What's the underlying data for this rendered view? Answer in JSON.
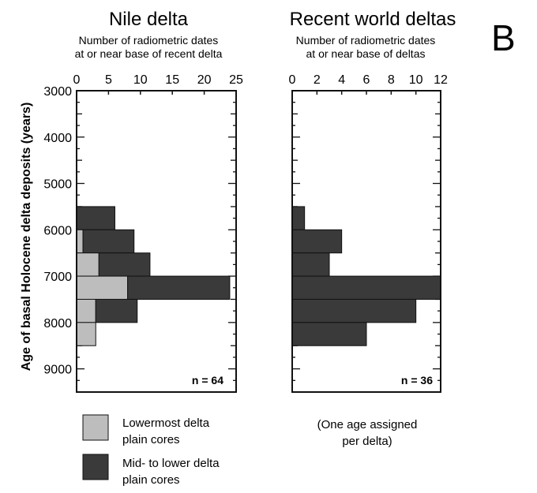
{
  "panel_label": "B",
  "y_axis_label": "Age of basal Holocene delta deposits (years)",
  "colors": {
    "lowermost": "#bdbdbd",
    "midlower": "#3a3a3a",
    "frame": "#111111"
  },
  "legend": {
    "items": [
      {
        "line1": "Lowermost delta",
        "line2": "plain cores",
        "color": "#bdbdbd"
      },
      {
        "line1": "Mid- to lower delta",
        "line2": "plain cores",
        "color": "#3a3a3a"
      }
    ]
  },
  "chart_data": [
    {
      "type": "bar",
      "orientation": "horizontal",
      "stacked": true,
      "title": "Nile delta",
      "xlabel_line1": "Number of radiometric dates",
      "xlabel_line2": "at or near base of recent delta",
      "xlim": [
        0,
        25
      ],
      "xticks": [
        0,
        5,
        10,
        15,
        20,
        25
      ],
      "ylim": [
        3000,
        9500
      ],
      "yticks": [
        3000,
        4000,
        5000,
        6000,
        7000,
        8000,
        9000
      ],
      "bin_width": 500,
      "bins": [
        5500,
        6000,
        6500,
        7000,
        7500,
        8000
      ],
      "series": [
        {
          "name": "Lowermost delta plain cores",
          "values": [
            0,
            1,
            3.5,
            8,
            3,
            3
          ]
        },
        {
          "name": "Mid- to lower delta plain cores",
          "values": [
            6,
            8,
            8,
            16,
            6.5,
            0
          ]
        }
      ],
      "annotation": "n = 64"
    },
    {
      "type": "bar",
      "orientation": "horizontal",
      "stacked": false,
      "title": "Recent world deltas",
      "xlabel_line1": "Number of radiometric dates",
      "xlabel_line2": "at or near base of deltas",
      "xlim": [
        0,
        12
      ],
      "xticks": [
        0,
        2,
        4,
        6,
        8,
        10,
        12
      ],
      "ylim": [
        3000,
        9500
      ],
      "yticks": [
        3000,
        4000,
        5000,
        6000,
        7000,
        8000,
        9000
      ],
      "bin_width": 500,
      "bins": [
        5500,
        6000,
        6500,
        7000,
        7500,
        8000
      ],
      "series": [
        {
          "values": [
            1,
            4,
            3,
            12,
            10,
            6
          ]
        }
      ],
      "annotation": "n = 36",
      "note_line1": "(One age assigned",
      "note_line2": "per delta)"
    }
  ]
}
